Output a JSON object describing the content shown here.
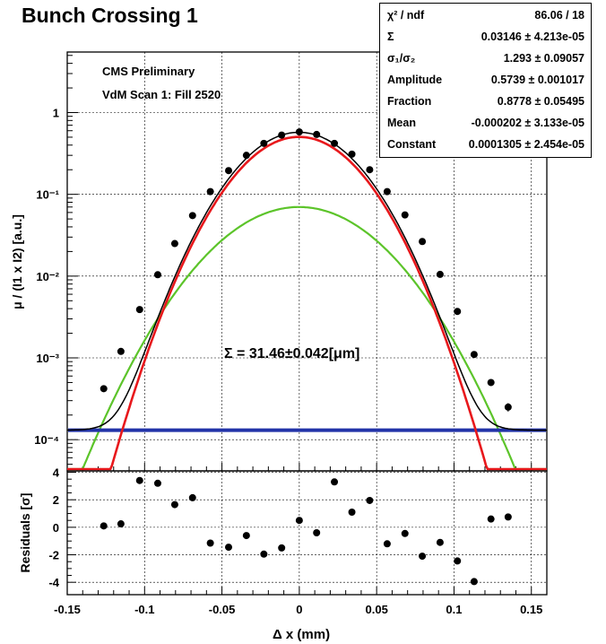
{
  "title": "Bunch Crossing 1",
  "annotations": {
    "label1": "CMS Preliminary",
    "label2": "VdM Scan 1: Fill 2520",
    "sigma_result": "Σ = 31.46±0.042[μm]"
  },
  "stats": [
    {
      "label": "χ² / ndf",
      "value": "86.06 / 18"
    },
    {
      "label": "Σ",
      "value": "0.03146 ± 4.213e-05"
    },
    {
      "label": "σ₁/σ₂",
      "value": "1.293 ± 0.09057"
    },
    {
      "label": "Amplitude",
      "value": "0.5739 ± 0.001017"
    },
    {
      "label": "Fraction",
      "value": "0.8778 ± 0.05495"
    },
    {
      "label": "Mean",
      "value": "-0.000202 ± 3.133e-05"
    },
    {
      "label": "Constant",
      "value": "0.0001305 ± 2.454e-05"
    }
  ],
  "colors": {
    "data": "#000000",
    "total_fit": "#000000",
    "narrow_gaussian": "#e8181c",
    "wide_gaussian": "#5cc42a",
    "constant": "#2233a8"
  },
  "chart_data": [
    {
      "type": "scatter",
      "panel": "main",
      "xlabel": "",
      "ylabel": "μ / (I1 x I2) [a.u.]",
      "xlim": [
        -0.15,
        0.16
      ],
      "ylim": [
        4.15e-05,
        5.5
      ],
      "yscale": "log",
      "ytick_labels": [
        "10⁻⁴",
        "10⁻³",
        "10⁻²",
        "10⁻¹",
        "1"
      ],
      "grid": true,
      "series": [
        {
          "x": [
            -0.1264,
            -0.1153,
            -0.1032,
            -0.0915,
            -0.0805,
            -0.069,
            -0.0575,
            -0.0457,
            -0.0342,
            -0.0229,
            -0.0114,
            0.0,
            0.0112,
            0.0227,
            0.034,
            0.0455,
            0.0568,
            0.0683,
            0.0795,
            0.091,
            0.1022,
            0.113,
            0.1239,
            0.135
          ],
          "y": [
            0.00042,
            0.0012,
            0.0039,
            0.0104,
            0.025,
            0.055,
            0.108,
            0.195,
            0.3,
            0.42,
            0.53,
            0.58,
            0.54,
            0.42,
            0.31,
            0.2,
            0.108,
            0.056,
            0.0265,
            0.0105,
            0.0037,
            0.0011,
            0.0005,
            0.00025
          ],
          "errors": [
            2e-05,
            4e-05,
            0.0001,
            0.0002,
            0.0004,
            0.0007,
            0.0012,
            0.002,
            0.003,
            0.004,
            0.005,
            0.005,
            0.005,
            0.004,
            0.003,
            0.002,
            0.0012,
            0.0007,
            0.0004,
            0.0002,
            0.0001,
            4e-05,
            3e-05,
            3e-05
          ]
        }
      ],
      "fit": {
        "amplitude": 0.5739,
        "fraction": 0.8778,
        "mean": -0.000202,
        "constant": 0.0001305,
        "sigma_narrow": 0.0281,
        "sigma_wide": 0.0364
      }
    },
    {
      "type": "scatter",
      "panel": "residuals",
      "xlabel": "Δ x (mm)",
      "ylabel": "Residuals [σ]",
      "xlim": [
        -0.15,
        0.16
      ],
      "ylim": [
        -4.9,
        4.1
      ],
      "x_ticks": [
        -0.15,
        -0.1,
        -0.05,
        0,
        0.05,
        0.1,
        0.15
      ],
      "y_ticks": [
        -4,
        -2,
        0,
        2,
        4
      ],
      "grid": true,
      "series": [
        {
          "x": [
            -0.1264,
            -0.1153,
            -0.1032,
            -0.0915,
            -0.0805,
            -0.069,
            -0.0575,
            -0.0457,
            -0.0342,
            -0.0229,
            -0.0114,
            0.0,
            0.0112,
            0.0227,
            0.034,
            0.0455,
            0.0568,
            0.0683,
            0.0795,
            0.091,
            0.1022,
            0.113,
            0.1239,
            0.135
          ],
          "y": [
            0.1,
            0.25,
            3.4,
            3.2,
            1.65,
            2.15,
            -1.15,
            -1.45,
            -0.6,
            -1.95,
            -1.5,
            0.5,
            -0.4,
            3.3,
            1.1,
            1.95,
            -1.2,
            -0.45,
            -2.1,
            -1.1,
            -2.45,
            -3.95,
            0.6,
            0.75
          ]
        }
      ]
    }
  ]
}
